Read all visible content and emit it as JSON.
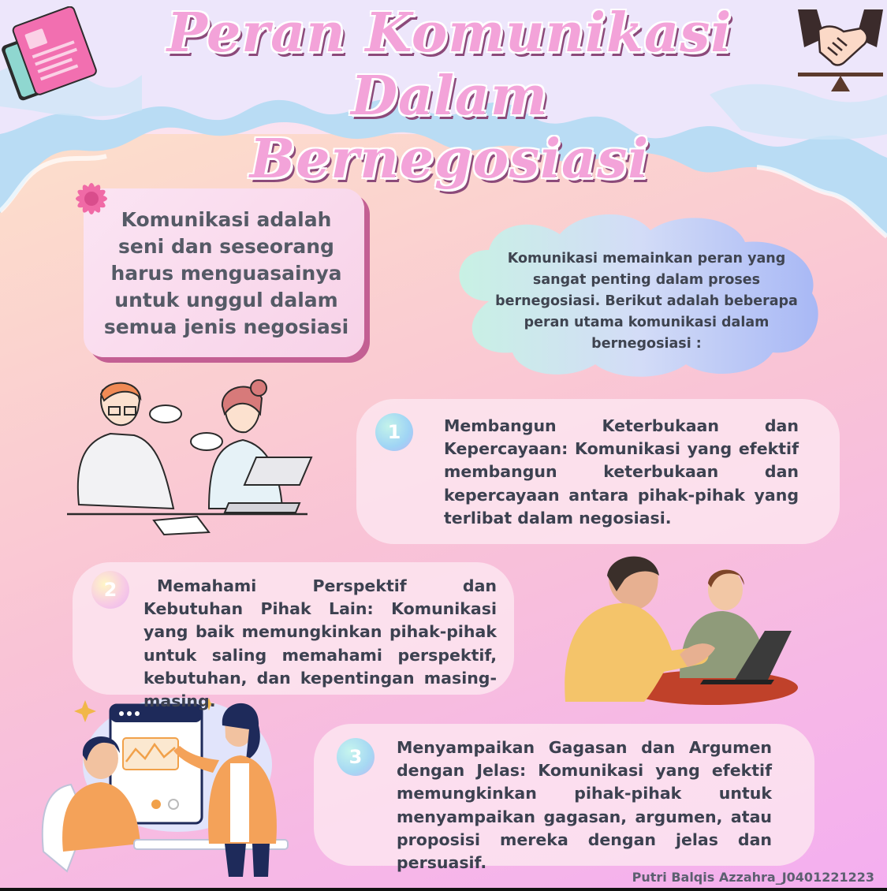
{
  "title": {
    "line1": "Peran Komunikasi Dalam",
    "line2": "Bernegosiasi"
  },
  "quote": "Komunikasi adalah seni dan seseorang harus menguasainya untuk unggul dalam semua jenis negosiasi",
  "intro": "Komunikasi memainkan peran yang sangat penting dalam proses bernegosiasi. Berikut adalah beberapa peran utama komunikasi dalam bernegosiasi :",
  "points": [
    {
      "number": "1",
      "text": "Membangun Keterbukaan dan Kepercayaan: Komunikasi yang efektif membangun keterbukaan dan kepercayaan antara pihak-pihak yang terlibat dalam negosiasi."
    },
    {
      "number": "2",
      "text": "Memahami Perspektif dan Kebutuhan Pihak Lain: Komunikasi yang baik memungkinkan pihak-pihak untuk saling memahami perspektif, kebutuhan, dan kepentingan masing-masing."
    },
    {
      "number": "3",
      "text": "Menyampaikan Gagasan dan Argumen dengan Jelas: Komunikasi yang efektif memungkinkan pihak-pihak untuk menyampaikan gagasan, argumen, atau proposisi mereka dengan jelas dan persuasif."
    }
  ],
  "credit": "Putri Balqis Azzahra_J0401221223",
  "colors": {
    "title_pink": "#f3a3d9",
    "title_shadow": "#8c4a7a",
    "quote_border": "#c35f93",
    "text_dark": "#3c4150",
    "cloud_blue": "#b9dcf4"
  },
  "icons": [
    "document-icon",
    "handshake-icon",
    "flower-icon",
    "speech-bubble-icon",
    "laptop-icon",
    "chart-board-icon"
  ]
}
